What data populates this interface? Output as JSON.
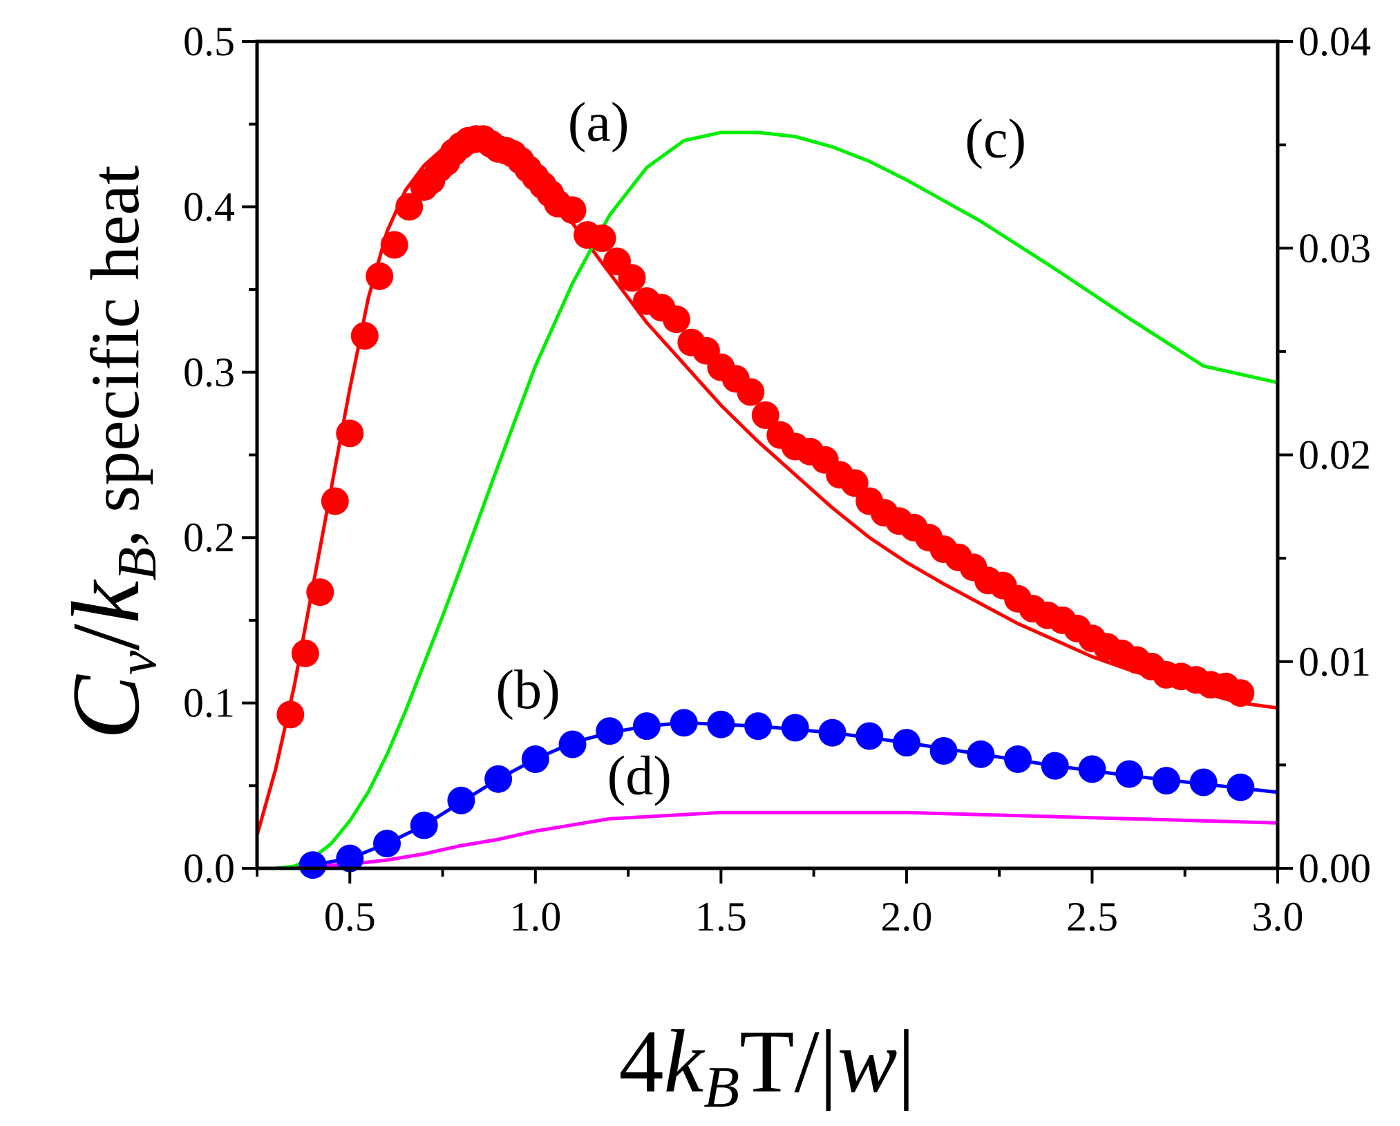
{
  "chart_data": {
    "type": "line",
    "title": "",
    "xlabel": {
      "prefix": "4",
      "k": "k",
      "sub": "B",
      "rest": "T/|",
      "w": "w",
      "close": "|"
    },
    "ylabel": {
      "C": "C",
      "sub_v": "v",
      "slash": "/",
      "k": "k",
      "sub_B": "B",
      "suffix": ", specific heat"
    },
    "xlim": [
      0.25,
      3.0
    ],
    "ylim_left": [
      0.0,
      0.5
    ],
    "ylim_right": [
      0.0,
      0.04
    ],
    "x_ticks": [
      "0.5",
      "1.0",
      "1.5",
      "2.0",
      "2.5",
      "3.0"
    ],
    "y_left_ticks": [
      "0.0",
      "0.1",
      "0.2",
      "0.3",
      "0.4",
      "0.5"
    ],
    "y_right_ticks": [
      "0.00",
      "0.01",
      "0.02",
      "0.03",
      "0.04"
    ],
    "series": [
      {
        "name": "(a) line",
        "axis": "left",
        "color": "#ff0000",
        "style": "line",
        "x": [
          0.25,
          0.3,
          0.35,
          0.4,
          0.45,
          0.5,
          0.55,
          0.6,
          0.65,
          0.7,
          0.75,
          0.8,
          0.85,
          0.9,
          0.95,
          1.0,
          1.1,
          1.2,
          1.3,
          1.4,
          1.5,
          1.6,
          1.7,
          1.8,
          1.9,
          2.0,
          2.1,
          2.2,
          2.3,
          2.4,
          2.5,
          2.6,
          2.7,
          2.8,
          2.9,
          3.0
        ],
        "y": [
          0.02,
          0.06,
          0.11,
          0.17,
          0.23,
          0.29,
          0.345,
          0.385,
          0.41,
          0.425,
          0.435,
          0.44,
          0.44,
          0.437,
          0.43,
          0.42,
          0.39,
          0.36,
          0.33,
          0.305,
          0.28,
          0.258,
          0.238,
          0.218,
          0.2,
          0.185,
          0.172,
          0.16,
          0.148,
          0.138,
          0.128,
          0.12,
          0.113,
          0.106,
          0.1,
          0.097
        ]
      },
      {
        "name": "(a) points",
        "axis": "left",
        "color": "#ff0000",
        "style": "markers",
        "x": [
          0.34,
          0.38,
          0.42,
          0.46,
          0.5,
          0.54,
          0.58,
          0.62,
          0.66,
          0.7,
          0.72,
          0.74,
          0.76,
          0.78,
          0.8,
          0.82,
          0.84,
          0.86,
          0.88,
          0.9,
          0.92,
          0.94,
          0.96,
          0.98,
          1.0,
          1.02,
          1.04,
          1.06,
          1.1,
          1.14,
          1.18,
          1.22,
          1.26,
          1.3,
          1.34,
          1.38,
          1.42,
          1.46,
          1.5,
          1.54,
          1.58,
          1.62,
          1.66,
          1.7,
          1.74,
          1.78,
          1.82,
          1.86,
          1.9,
          1.94,
          1.98,
          2.02,
          2.06,
          2.1,
          2.14,
          2.18,
          2.22,
          2.26,
          2.3,
          2.34,
          2.38,
          2.42,
          2.46,
          2.5,
          2.54,
          2.58,
          2.62,
          2.66,
          2.7,
          2.74,
          2.78,
          2.82,
          2.86,
          2.9
        ],
        "y": [
          0.093,
          0.13,
          0.167,
          0.222,
          0.263,
          0.322,
          0.358,
          0.377,
          0.4,
          0.412,
          0.416,
          0.423,
          0.427,
          0.433,
          0.437,
          0.44,
          0.441,
          0.441,
          0.438,
          0.435,
          0.434,
          0.432,
          0.428,
          0.423,
          0.418,
          0.413,
          0.408,
          0.402,
          0.398,
          0.383,
          0.381,
          0.367,
          0.357,
          0.343,
          0.339,
          0.332,
          0.318,
          0.313,
          0.303,
          0.296,
          0.288,
          0.274,
          0.262,
          0.255,
          0.252,
          0.247,
          0.238,
          0.233,
          0.222,
          0.215,
          0.21,
          0.206,
          0.2,
          0.193,
          0.188,
          0.182,
          0.174,
          0.171,
          0.163,
          0.157,
          0.153,
          0.15,
          0.145,
          0.139,
          0.134,
          0.13,
          0.126,
          0.122,
          0.117,
          0.116,
          0.114,
          0.111,
          0.11,
          0.106
        ]
      },
      {
        "name": "(b) line",
        "axis": "left",
        "color": "#0000ff",
        "style": "line",
        "x": [
          0.25,
          0.3,
          0.35,
          0.4,
          0.5,
          0.6,
          0.7,
          0.8,
          0.9,
          1.0,
          1.1,
          1.2,
          1.3,
          1.4,
          1.5,
          1.6,
          1.7,
          1.8,
          1.9,
          2.0,
          2.2,
          2.4,
          2.6,
          2.8,
          3.0
        ],
        "y": [
          0.0,
          0.0,
          0.0005,
          0.002,
          0.006,
          0.015,
          0.026,
          0.04,
          0.054,
          0.066,
          0.076,
          0.082,
          0.086,
          0.088,
          0.087,
          0.086,
          0.084,
          0.082,
          0.079,
          0.076,
          0.069,
          0.062,
          0.056,
          0.051,
          0.046
        ]
      },
      {
        "name": "(b) points",
        "axis": "left",
        "color": "#0000ff",
        "style": "markers",
        "x": [
          0.4,
          0.5,
          0.6,
          0.7,
          0.8,
          0.9,
          1.0,
          1.1,
          1.2,
          1.3,
          1.4,
          1.5,
          1.6,
          1.7,
          1.8,
          1.9,
          2.0,
          2.1,
          2.2,
          2.3,
          2.4,
          2.5,
          2.6,
          2.7,
          2.8,
          2.9
        ],
        "y": [
          0.002,
          0.006,
          0.015,
          0.026,
          0.041,
          0.054,
          0.066,
          0.075,
          0.083,
          0.086,
          0.088,
          0.087,
          0.086,
          0.085,
          0.082,
          0.08,
          0.076,
          0.071,
          0.069,
          0.066,
          0.062,
          0.06,
          0.057,
          0.053,
          0.052,
          0.049
        ]
      },
      {
        "name": "(c)",
        "axis": "right",
        "color": "#00ee00",
        "style": "line",
        "x": [
          0.25,
          0.3,
          0.35,
          0.4,
          0.45,
          0.5,
          0.55,
          0.6,
          0.65,
          0.7,
          0.75,
          0.8,
          0.9,
          1.0,
          1.1,
          1.2,
          1.3,
          1.4,
          1.5,
          1.6,
          1.7,
          1.8,
          1.9,
          2.0,
          2.2,
          2.4,
          2.6,
          2.8,
          3.0
        ],
        "y": [
          0.0,
          0.0,
          0.0001,
          0.0005,
          0.0012,
          0.0023,
          0.0037,
          0.0055,
          0.0076,
          0.0099,
          0.0122,
          0.0146,
          0.0195,
          0.0243,
          0.0283,
          0.0316,
          0.0339,
          0.0352,
          0.0356,
          0.0356,
          0.0354,
          0.0349,
          0.0342,
          0.0333,
          0.0313,
          0.029,
          0.0266,
          0.0243,
          0.0235
        ]
      },
      {
        "name": "(d)",
        "axis": "right",
        "color": "#ff00ff",
        "style": "line",
        "x": [
          0.25,
          0.3,
          0.35,
          0.4,
          0.5,
          0.6,
          0.7,
          0.8,
          0.9,
          1.0,
          1.1,
          1.2,
          1.3,
          1.4,
          1.5,
          1.6,
          1.7,
          1.8,
          1.9,
          2.0,
          2.2,
          2.4,
          2.6,
          2.8,
          3.0
        ],
        "y": [
          0.0,
          0.0,
          0.0,
          0.0001,
          0.0002,
          0.0004,
          0.0007,
          0.0011,
          0.0014,
          0.0018,
          0.0021,
          0.0024,
          0.0025,
          0.0026,
          0.0027,
          0.0027,
          0.0027,
          0.0027,
          0.0027,
          0.0027,
          0.0026,
          0.0025,
          0.0024,
          0.0023,
          0.0022
        ]
      }
    ],
    "annotations": [
      {
        "text": "(a)",
        "x": 1.17,
        "y_left": 0.44
      },
      {
        "text": "(c)",
        "x": 2.24,
        "y_left": 0.43
      },
      {
        "text": "(b)",
        "x": 0.98,
        "y_left": 0.097
      },
      {
        "text": "(d)",
        "x": 1.28,
        "y_left": 0.045
      }
    ]
  }
}
